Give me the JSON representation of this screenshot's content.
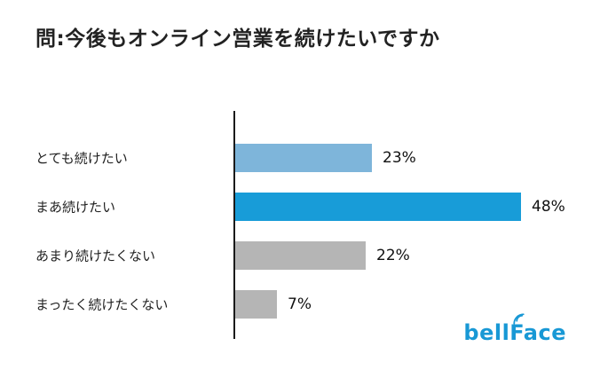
{
  "title": "問:今後もオンライン営業を続けたいですか",
  "logo": {
    "text": "bellFace",
    "color": "#1898d5"
  },
  "chart_data": {
    "type": "bar",
    "orientation": "horizontal",
    "title": "問:今後もオンライン営業を続けたいですか",
    "categories": [
      "とても続けたい",
      "まあ続けたい",
      "あまり続けたくない",
      "まったく続けたくない"
    ],
    "values": [
      23,
      48,
      22,
      7
    ],
    "value_labels": [
      "23%",
      "48%",
      "22%",
      "7%"
    ],
    "bar_colors": [
      "#7eb5da",
      "#189cd8",
      "#b5b5b5",
      "#b5b5b5"
    ],
    "xlim": [
      0,
      50
    ],
    "grid": false,
    "legend": false,
    "highlight_color": "#189cd8",
    "muted_color": "#b5b5b5"
  }
}
